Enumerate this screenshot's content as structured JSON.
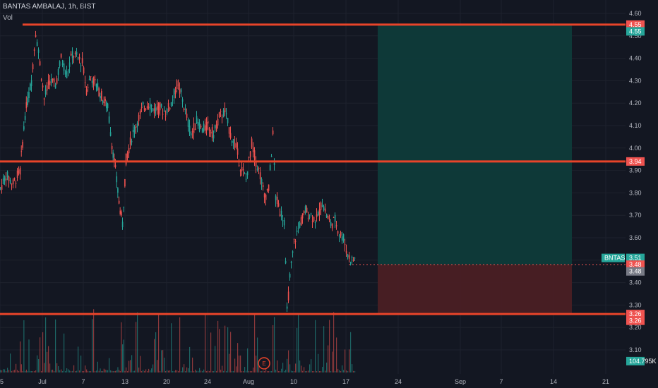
{
  "header": {
    "symbol_line": "BANTAS AMBALAJ, 1h, BIST",
    "vol_label": "Vol"
  },
  "colors": {
    "background": "#131722",
    "grid": "#1e222d",
    "up": "#26a69a",
    "down": "#ef5350",
    "level_line": "#e8442a",
    "target_zone": "#0e3b3a",
    "stop_zone": "#4a1f24"
  },
  "chart_data": {
    "type": "candlestick",
    "y_range": [
      3.05,
      4.63
    ],
    "y_ticks": [
      "4.60",
      "4.50",
      "4.40",
      "4.30",
      "4.20",
      "4.10",
      "4.00",
      "3.90",
      "3.80",
      "3.70",
      "3.60",
      "3.50",
      "3.40",
      "3.30",
      "3.20",
      "3.10"
    ],
    "x_ticks": [
      {
        "label": "25",
        "t": 0
      },
      {
        "label": "Jul",
        "t": 60
      },
      {
        "label": "7",
        "t": 118
      },
      {
        "label": "13",
        "t": 177
      },
      {
        "label": "20",
        "t": 236
      },
      {
        "label": "24",
        "t": 294
      },
      {
        "label": "Aug",
        "t": 352
      },
      {
        "label": "10",
        "t": 416
      },
      {
        "label": "17",
        "t": 490
      },
      {
        "label": "24",
        "t": 564
      },
      {
        "label": "Sep",
        "t": 652
      },
      {
        "label": "7",
        "t": 710
      },
      {
        "label": "14",
        "t": 784
      },
      {
        "label": "21",
        "t": 858
      }
    ],
    "horizontal_levels": [
      4.55,
      3.94,
      3.26
    ],
    "position": {
      "type": "long",
      "entry": 3.48,
      "target": 4.55,
      "stop": 3.26,
      "t_start": 535,
      "t_end": 810
    },
    "price_tags": [
      {
        "label": "4.55",
        "value": 4.55,
        "style": "red"
      },
      {
        "label": "4.55",
        "value": 4.52,
        "style": "green"
      },
      {
        "label": "3.94",
        "value": 3.94,
        "style": "red"
      },
      {
        "label": "3.51",
        "value": 3.51,
        "style": "green",
        "prefix": "BNTAS"
      },
      {
        "label": "3.48",
        "value": 3.48,
        "style": "red"
      },
      {
        "label": "3.48",
        "value": 3.45,
        "style": "gray"
      },
      {
        "label": "3.26",
        "value": 3.26,
        "style": "red"
      },
      {
        "label": "3.26",
        "value": 3.23,
        "style": "red"
      },
      {
        "label": "104.795K",
        "value": 3.05,
        "style": "green"
      }
    ],
    "volume_axis_label": "104.795K",
    "event_marker": {
      "label": "E",
      "t": 374
    },
    "series_path": [
      [
        0,
        3.82
      ],
      [
        8,
        3.88
      ],
      [
        18,
        3.84
      ],
      [
        28,
        3.9
      ],
      [
        35,
        4.15
      ],
      [
        44,
        4.3
      ],
      [
        50,
        4.52
      ],
      [
        56,
        4.38
      ],
      [
        62,
        4.22
      ],
      [
        70,
        4.3
      ],
      [
        78,
        4.28
      ],
      [
        86,
        4.4
      ],
      [
        94,
        4.33
      ],
      [
        102,
        4.42
      ],
      [
        110,
        4.4
      ],
      [
        116,
        4.38
      ],
      [
        122,
        4.26
      ],
      [
        128,
        4.32
      ],
      [
        136,
        4.28
      ],
      [
        145,
        4.22
      ],
      [
        152,
        4.18
      ],
      [
        158,
        4.02
      ],
      [
        163,
        3.9
      ],
      [
        168,
        3.76
      ],
      [
        173,
        3.66
      ],
      [
        178,
        3.95
      ],
      [
        186,
        4.05
      ],
      [
        194,
        4.12
      ],
      [
        202,
        4.18
      ],
      [
        210,
        4.2
      ],
      [
        218,
        4.17
      ],
      [
        226,
        4.18
      ],
      [
        234,
        4.16
      ],
      [
        242,
        4.2
      ],
      [
        250,
        4.28
      ],
      [
        256,
        4.24
      ],
      [
        262,
        4.16
      ],
      [
        270,
        4.06
      ],
      [
        278,
        4.12
      ],
      [
        286,
        4.08
      ],
      [
        294,
        4.1
      ],
      [
        302,
        4.06
      ],
      [
        310,
        4.14
      ],
      [
        318,
        4.16
      ],
      [
        326,
        4.06
      ],
      [
        334,
        4.0
      ],
      [
        340,
        3.92
      ],
      [
        348,
        3.86
      ],
      [
        356,
        4.02
      ],
      [
        362,
        3.94
      ],
      [
        368,
        3.88
      ],
      [
        374,
        3.78
      ],
      [
        380,
        3.82
      ],
      [
        386,
        4.06
      ],
      [
        390,
        3.78
      ],
      [
        396,
        3.72
      ],
      [
        402,
        3.68
      ],
      [
        406,
        3.27
      ],
      [
        410,
        3.42
      ],
      [
        416,
        3.58
      ],
      [
        424,
        3.66
      ],
      [
        432,
        3.72
      ],
      [
        440,
        3.7
      ],
      [
        448,
        3.68
      ],
      [
        456,
        3.76
      ],
      [
        462,
        3.7
      ],
      [
        468,
        3.66
      ],
      [
        474,
        3.68
      ],
      [
        480,
        3.62
      ],
      [
        486,
        3.6
      ],
      [
        492,
        3.52
      ],
      [
        498,
        3.5
      ],
      [
        504,
        3.51
      ]
    ]
  }
}
